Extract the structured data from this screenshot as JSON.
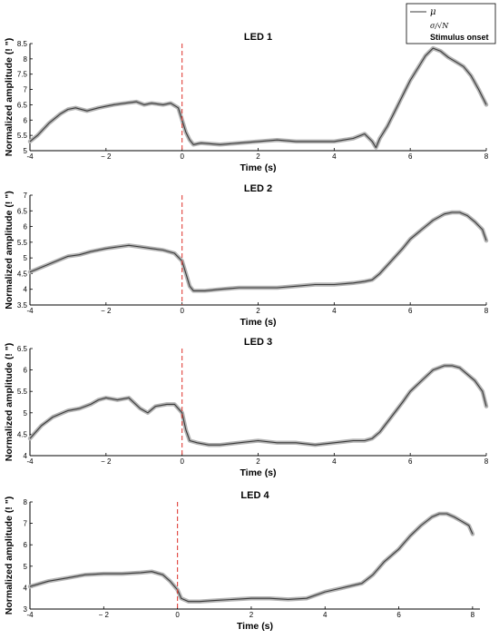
{
  "legend": {
    "mean": "μ",
    "sem": "σ/√N",
    "onset": "Stimulus onset"
  },
  "chart_data": [
    {
      "type": "line",
      "title": "LED 1",
      "xlabel": "Time (s)",
      "ylabel": "Normalized amplitude (! \")",
      "xlim": [
        -4,
        8
      ],
      "ylim": [
        5,
        8.5
      ],
      "xticks": [
        -4,
        -2,
        0,
        2,
        4,
        6,
        8
      ],
      "xtick_labels": [
        "-4",
        "− 2",
        "0",
        "2",
        "4",
        "6",
        "8"
      ],
      "yticks": [
        5,
        5.5,
        6,
        6.5,
        7,
        7.5,
        8,
        8.5
      ],
      "ytick_labels": [
        "5",
        "5.5",
        "6",
        "6.5",
        "7",
        "7.5",
        "8",
        "8.5"
      ],
      "onset_x": 0,
      "series": [
        {
          "name": "μ",
          "x": [
            -4,
            -3.8,
            -3.5,
            -3.2,
            -3,
            -2.8,
            -2.5,
            -2.2,
            -2,
            -1.8,
            -1.5,
            -1.2,
            -1,
            -0.8,
            -0.5,
            -0.3,
            -0.1,
            0,
            0.1,
            0.2,
            0.3,
            0.5,
            1,
            1.5,
            2,
            2.5,
            3,
            3.5,
            4,
            4.5,
            4.8,
            5,
            5.1,
            5.2,
            5.4,
            5.6,
            5.8,
            6,
            6.2,
            6.4,
            6.6,
            6.8,
            7,
            7.2,
            7.4,
            7.6,
            7.8,
            8
          ],
          "y": [
            5.3,
            5.5,
            5.9,
            6.2,
            6.35,
            6.4,
            6.3,
            6.4,
            6.45,
            6.5,
            6.55,
            6.6,
            6.5,
            6.55,
            6.5,
            6.55,
            6.4,
            6.0,
            5.6,
            5.35,
            5.2,
            5.25,
            5.2,
            5.25,
            5.3,
            5.35,
            5.3,
            5.3,
            5.3,
            5.4,
            5.55,
            5.3,
            5.1,
            5.4,
            5.8,
            6.3,
            6.8,
            7.3,
            7.7,
            8.1,
            8.35,
            8.25,
            8.05,
            7.9,
            7.75,
            7.45,
            7.0,
            6.5
          ]
        }
      ]
    },
    {
      "type": "line",
      "title": "LED 2",
      "xlabel": "Time (s)",
      "ylabel": "Normalized amplitude (! \")",
      "xlim": [
        -4,
        8
      ],
      "ylim": [
        3.5,
        7
      ],
      "xticks": [
        -4,
        -2,
        0,
        2,
        4,
        6,
        8
      ],
      "xtick_labels": [
        "-4",
        "− 2",
        "0",
        "2",
        "4",
        "6",
        "8"
      ],
      "yticks": [
        3.5,
        4,
        4.5,
        5,
        5.5,
        6,
        6.5,
        7
      ],
      "ytick_labels": [
        "3.5",
        "4",
        "4.5",
        "5",
        "5.5",
        "6",
        "6.5",
        "7"
      ],
      "onset_x": 0,
      "series": [
        {
          "name": "μ",
          "x": [
            -4,
            -3.7,
            -3.4,
            -3,
            -2.7,
            -2.4,
            -2,
            -1.7,
            -1.4,
            -1.1,
            -0.8,
            -0.5,
            -0.2,
            0,
            0.1,
            0.2,
            0.3,
            0.6,
            1,
            1.5,
            2,
            2.5,
            3,
            3.5,
            4,
            4.5,
            4.8,
            5,
            5.2,
            5.5,
            5.8,
            6,
            6.3,
            6.6,
            6.9,
            7.1,
            7.3,
            7.5,
            7.7,
            7.9,
            8
          ],
          "y": [
            4.55,
            4.7,
            4.85,
            5.05,
            5.1,
            5.2,
            5.3,
            5.35,
            5.4,
            5.35,
            5.3,
            5.25,
            5.15,
            4.9,
            4.5,
            4.1,
            3.95,
            3.95,
            4.0,
            4.05,
            4.05,
            4.05,
            4.1,
            4.15,
            4.15,
            4.2,
            4.25,
            4.3,
            4.5,
            4.9,
            5.3,
            5.6,
            5.9,
            6.2,
            6.4,
            6.45,
            6.45,
            6.35,
            6.15,
            5.9,
            5.55
          ]
        }
      ]
    },
    {
      "type": "line",
      "title": "LED 3",
      "xlabel": "Time (s)",
      "ylabel": "Normalized amplitude (! \")",
      "xlim": [
        -4,
        8
      ],
      "ylim": [
        4,
        6.5
      ],
      "xticks": [
        -4,
        -2,
        0,
        2,
        4,
        6,
        8
      ],
      "xtick_labels": [
        "-4",
        "− 2",
        "0",
        "2",
        "4",
        "6",
        "8"
      ],
      "yticks": [
        4,
        4.5,
        5,
        5.5,
        6,
        6.5
      ],
      "ytick_labels": [
        "4",
        "4.5",
        "5",
        "5.5",
        "6",
        "6.5"
      ],
      "onset_x": 0,
      "series": [
        {
          "name": "μ",
          "x": [
            -4,
            -3.7,
            -3.4,
            -3,
            -2.7,
            -2.4,
            -2.2,
            -2,
            -1.7,
            -1.4,
            -1.1,
            -0.9,
            -0.7,
            -0.4,
            -0.2,
            0,
            0.1,
            0.2,
            0.4,
            0.7,
            1,
            1.5,
            2,
            2.5,
            3,
            3.5,
            4,
            4.5,
            4.8,
            5,
            5.2,
            5.5,
            5.8,
            6,
            6.3,
            6.6,
            6.9,
            7.1,
            7.3,
            7.5,
            7.7,
            7.9,
            8
          ],
          "y": [
            4.4,
            4.7,
            4.9,
            5.05,
            5.1,
            5.2,
            5.3,
            5.35,
            5.3,
            5.35,
            5.1,
            5.0,
            5.15,
            5.2,
            5.2,
            5.0,
            4.6,
            4.35,
            4.3,
            4.25,
            4.25,
            4.3,
            4.35,
            4.3,
            4.3,
            4.25,
            4.3,
            4.35,
            4.35,
            4.4,
            4.55,
            4.9,
            5.25,
            5.5,
            5.75,
            6.0,
            6.1,
            6.1,
            6.05,
            5.9,
            5.75,
            5.5,
            5.15
          ]
        }
      ]
    },
    {
      "type": "line",
      "title": "LED 4",
      "xlabel": "Time (s)",
      "ylabel": "Normalized amplitude (! \")",
      "xlim": [
        -4,
        8.2
      ],
      "ylim": [
        3,
        8
      ],
      "xticks": [
        -4,
        -2,
        0,
        2,
        4,
        6,
        8
      ],
      "xtick_labels": [
        "-4",
        "− 2",
        "0",
        "2",
        "4",
        "6",
        "8"
      ],
      "yticks": [
        3,
        4,
        5,
        6,
        7,
        8
      ],
      "ytick_labels": [
        "3",
        "4",
        "5",
        "6",
        "7",
        "8"
      ],
      "onset_x": 0,
      "series": [
        {
          "name": "μ",
          "x": [
            -4,
            -3.5,
            -3,
            -2.5,
            -2,
            -1.5,
            -1,
            -0.7,
            -0.4,
            -0.2,
            0,
            0.1,
            0.3,
            0.6,
            1,
            1.5,
            2,
            2.5,
            3,
            3.5,
            4,
            4.5,
            5,
            5.3,
            5.6,
            6,
            6.3,
            6.6,
            6.9,
            7.1,
            7.3,
            7.5,
            7.7,
            7.9,
            8
          ],
          "y": [
            4.05,
            4.3,
            4.45,
            4.6,
            4.65,
            4.65,
            4.7,
            4.75,
            4.6,
            4.3,
            3.9,
            3.5,
            3.35,
            3.35,
            3.4,
            3.45,
            3.5,
            3.5,
            3.45,
            3.5,
            3.8,
            4.0,
            4.2,
            4.6,
            5.2,
            5.8,
            6.4,
            6.9,
            7.3,
            7.45,
            7.45,
            7.3,
            7.1,
            6.9,
            6.5
          ]
        }
      ]
    }
  ],
  "colors": {
    "mean": "#3a3a3a",
    "band": "#b4b4b4",
    "onset": "#e0413a",
    "axis": "#000000"
  }
}
